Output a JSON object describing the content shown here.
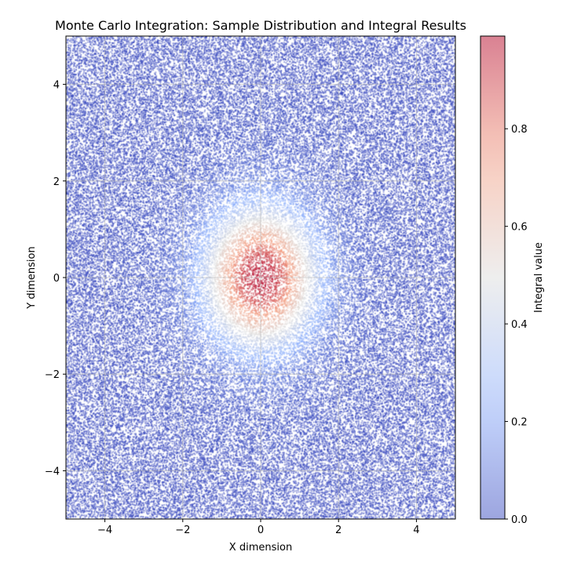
{
  "chart_data": {
    "type": "scatter",
    "title": "Monte Carlo Integration: Sample Distribution and Integral Results",
    "xlabel": "X dimension",
    "ylabel": "Y dimension",
    "xlim": [
      -5,
      5
    ],
    "ylim": [
      -5,
      5
    ],
    "xticks": [
      -4,
      -2,
      0,
      2,
      4
    ],
    "yticks": [
      -4,
      -2,
      0,
      2,
      4
    ],
    "x_tick_labels": [
      "−4",
      "−2",
      "0",
      "2",
      "4"
    ],
    "y_tick_labels": [
      "−4",
      "−2",
      "0",
      "2",
      "4"
    ],
    "grid": true,
    "sampling": "uniform random points over [-5,5] x [-5,5]",
    "color_function": "exp(-(x^2 + y^2) / 2)",
    "colormap": "coolwarm",
    "point_alpha": 0.5,
    "colorbar": {
      "label": "Integral value",
      "range": [
        0.0,
        0.99
      ],
      "ticks": [
        0.0,
        0.2,
        0.4,
        0.6,
        0.8
      ],
      "tick_labels": [
        "0.0",
        "0.2",
        "0.4",
        "0.6",
        "0.8"
      ]
    }
  }
}
